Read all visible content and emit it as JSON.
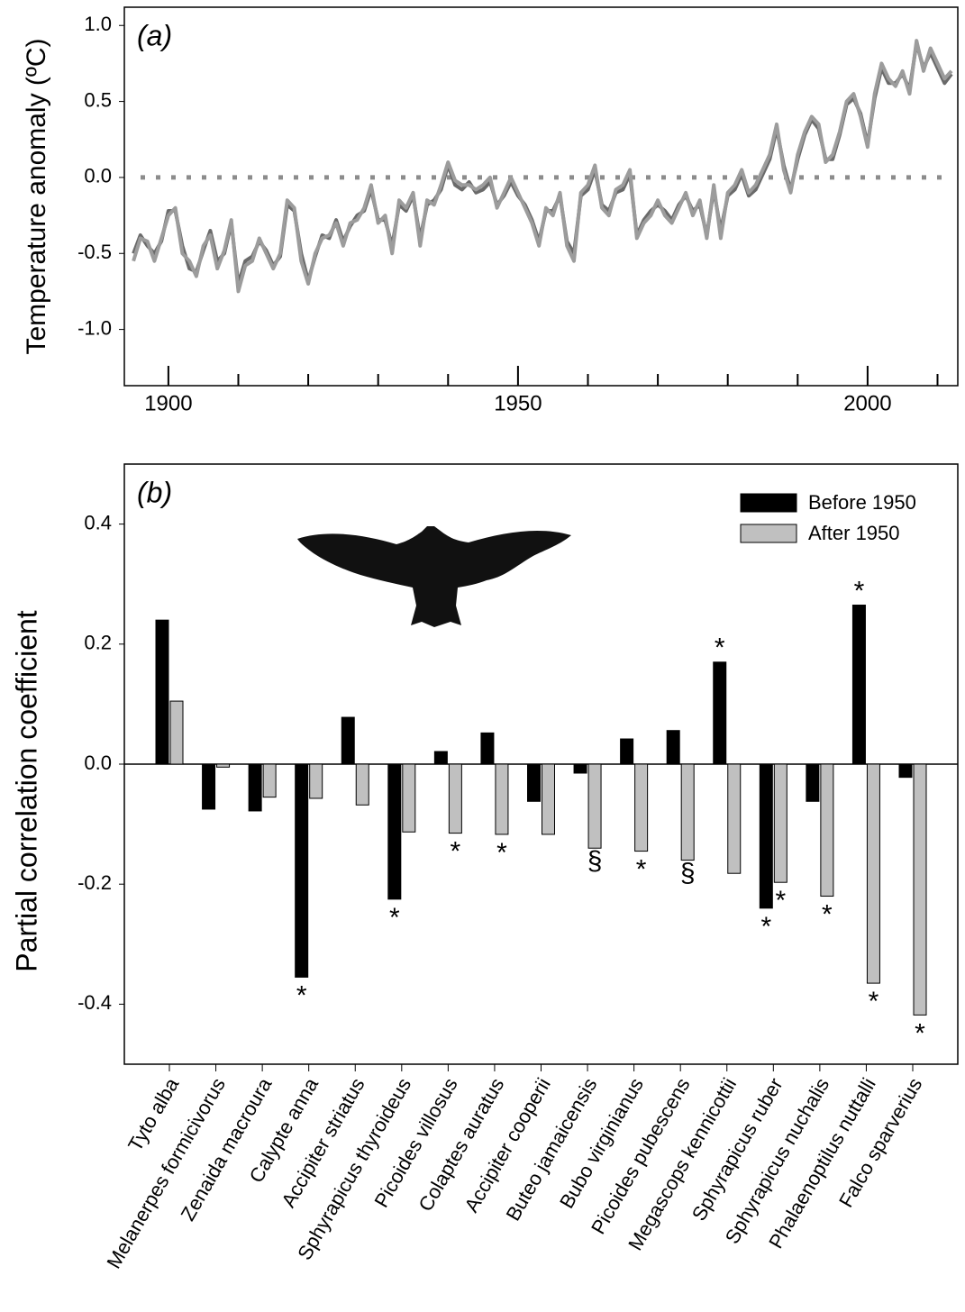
{
  "chart_data": [
    {
      "type": "line",
      "panel_label": "(a)",
      "y_label": "Temperature anomaly (ºC)",
      "xlim": [
        1893.7,
        2012.9
      ],
      "ylim": [
        -1.37,
        1.12
      ],
      "xticks": [
        1900,
        1950,
        2000
      ],
      "xminor_ticks": [
        1910,
        1920,
        1930,
        1940,
        1960,
        1970,
        1980,
        1990,
        2010
      ],
      "yticks": [
        {
          "value": 1,
          "label": "1.0"
        },
        0.5,
        {
          "value": 0,
          "label": "0.0"
        },
        -0.5,
        {
          "value": -1,
          "label": "-1.0"
        }
      ],
      "hline": 0,
      "x": [
        1895,
        1896,
        1897,
        1898,
        1899,
        1900,
        1901,
        1902,
        1903,
        1904,
        1905,
        1906,
        1907,
        1908,
        1909,
        1910,
        1911,
        1912,
        1913,
        1914,
        1915,
        1916,
        1917,
        1918,
        1919,
        1920,
        1921,
        1922,
        1923,
        1924,
        1925,
        1926,
        1927,
        1928,
        1929,
        1930,
        1931,
        1932,
        1933,
        1934,
        1935,
        1936,
        1937,
        1938,
        1939,
        1940,
        1941,
        1942,
        1943,
        1944,
        1945,
        1946,
        1947,
        1948,
        1949,
        1950,
        1951,
        1952,
        1953,
        1954,
        1955,
        1956,
        1957,
        1958,
        1959,
        1960,
        1961,
        1962,
        1963,
        1964,
        1965,
        1966,
        1967,
        1968,
        1969,
        1970,
        1971,
        1972,
        1973,
        1974,
        1975,
        1976,
        1977,
        1978,
        1979,
        1980,
        1981,
        1982,
        1983,
        1984,
        1985,
        1986,
        1987,
        1988,
        1989,
        1990,
        1991,
        1992,
        1993,
        1994,
        1995,
        1996,
        1997,
        1998,
        1999,
        2000,
        2001,
        2002,
        2003,
        2004,
        2005,
        2006,
        2007,
        2008,
        2009,
        2010,
        2011,
        2012
      ],
      "series": [
        {
          "color": "#6a6a6a",
          "values": [
            -0.5,
            -0.38,
            -0.45,
            -0.5,
            -0.42,
            -0.22,
            -0.22,
            -0.45,
            -0.6,
            -0.62,
            -0.48,
            -0.35,
            -0.55,
            -0.5,
            -0.3,
            -0.7,
            -0.55,
            -0.52,
            -0.42,
            -0.48,
            -0.58,
            -0.52,
            -0.18,
            -0.22,
            -0.5,
            -0.68,
            -0.52,
            -0.38,
            -0.4,
            -0.28,
            -0.42,
            -0.32,
            -0.25,
            -0.22,
            -0.08,
            -0.28,
            -0.28,
            -0.45,
            -0.18,
            -0.22,
            -0.12,
            -0.4,
            -0.18,
            -0.15,
            -0.08,
            0.08,
            -0.05,
            -0.08,
            -0.03,
            -0.1,
            -0.08,
            -0.03,
            -0.18,
            -0.12,
            -0.03,
            -0.12,
            -0.18,
            -0.28,
            -0.42,
            -0.22,
            -0.22,
            -0.12,
            -0.42,
            -0.5,
            -0.12,
            -0.08,
            0.05,
            -0.18,
            -0.22,
            -0.1,
            -0.08,
            0.02,
            -0.38,
            -0.28,
            -0.22,
            -0.18,
            -0.22,
            -0.28,
            -0.18,
            -0.12,
            -0.22,
            -0.18,
            -0.38,
            -0.08,
            -0.35,
            -0.12,
            -0.08,
            0.02,
            -0.12,
            -0.08,
            0.02,
            0.12,
            0.32,
            0.08,
            -0.08,
            0.12,
            0.28,
            0.38,
            0.32,
            0.12,
            0.12,
            0.28,
            0.48,
            0.52,
            0.42,
            0.22,
            0.52,
            0.72,
            0.62,
            0.62,
            0.68,
            0.58,
            0.88,
            0.72,
            0.82,
            0.72,
            0.62,
            0.68
          ]
        },
        {
          "color": "#9c9c9c",
          "values": [
            -0.55,
            -0.4,
            -0.42,
            -0.55,
            -0.4,
            -0.25,
            -0.2,
            -0.5,
            -0.55,
            -0.65,
            -0.45,
            -0.38,
            -0.6,
            -0.48,
            -0.28,
            -0.75,
            -0.58,
            -0.55,
            -0.4,
            -0.5,
            -0.6,
            -0.5,
            -0.15,
            -0.2,
            -0.55,
            -0.7,
            -0.5,
            -0.4,
            -0.38,
            -0.3,
            -0.45,
            -0.3,
            -0.28,
            -0.2,
            -0.05,
            -0.3,
            -0.25,
            -0.5,
            -0.15,
            -0.2,
            -0.1,
            -0.45,
            -0.15,
            -0.18,
            -0.05,
            0.1,
            -0.02,
            -0.05,
            -0.05,
            -0.08,
            -0.05,
            0.0,
            -0.2,
            -0.1,
            0.0,
            -0.1,
            -0.2,
            -0.3,
            -0.45,
            -0.2,
            -0.25,
            -0.1,
            -0.45,
            -0.55,
            -0.1,
            -0.05,
            0.08,
            -0.2,
            -0.25,
            -0.08,
            -0.05,
            0.05,
            -0.4,
            -0.3,
            -0.25,
            -0.15,
            -0.25,
            -0.3,
            -0.2,
            -0.1,
            -0.25,
            -0.15,
            -0.4,
            -0.05,
            -0.4,
            -0.1,
            -0.05,
            0.05,
            -0.1,
            -0.05,
            0.05,
            0.15,
            0.35,
            0.05,
            -0.1,
            0.15,
            0.3,
            0.4,
            0.35,
            0.1,
            0.15,
            0.3,
            0.5,
            0.55,
            0.4,
            0.2,
            0.55,
            0.75,
            0.65,
            0.6,
            0.7,
            0.55,
            0.9,
            0.7,
            0.85,
            0.75,
            0.65,
            0.7
          ]
        }
      ]
    },
    {
      "type": "bar",
      "panel_label": "(b)",
      "y_label": "Partial correlation coefficient",
      "ylim": [
        -0.5,
        0.5
      ],
      "yticks": [
        -0.4,
        -0.2,
        {
          "value": 0,
          "label": "0.0"
        },
        0.2,
        0.4
      ],
      "legend": "upper right",
      "categories": [
        "Tyto alba",
        "Melanerpes formicivorus",
        "Zenaida macroura",
        "Calypte anna",
        "Accipiter striatus",
        "Sphyrapicus thyroideus",
        "Picoides villosus",
        "Colaptes auratus",
        "Accipiter cooperii",
        "Buteo jamaicensis",
        "Bubo virginianus",
        "Picoides pubescens",
        "Megascops kennicottii",
        "Sphyrapicus ruber",
        "Sphyrapicus nuchalis",
        "Phalaenoptilus nuttalli",
        "Falco sparverius"
      ],
      "series": [
        {
          "name": "Before 1950",
          "color": "#000000",
          "values": [
            0.24,
            -0.075,
            -0.078,
            -0.355,
            0.078,
            -0.225,
            0.021,
            0.052,
            -0.062,
            -0.015,
            0.042,
            0.056,
            0.17,
            -0.24,
            -0.062,
            0.265,
            -0.022
          ],
          "annotations": [
            null,
            null,
            null,
            "*",
            null,
            "*",
            null,
            null,
            null,
            null,
            null,
            null,
            "*",
            "*",
            null,
            "*",
            null
          ]
        },
        {
          "name": "After 1950",
          "color": "#c0c0c0",
          "values": [
            0.105,
            -0.005,
            -0.055,
            -0.057,
            -0.068,
            -0.113,
            -0.115,
            -0.117,
            -0.117,
            -0.14,
            -0.145,
            -0.16,
            -0.182,
            -0.197,
            -0.22,
            -0.365,
            -0.418
          ],
          "annotations": [
            null,
            null,
            null,
            null,
            null,
            null,
            "*",
            "*",
            null,
            "§",
            "*",
            "§",
            null,
            "*",
            "*",
            "*",
            "*"
          ]
        }
      ]
    }
  ]
}
